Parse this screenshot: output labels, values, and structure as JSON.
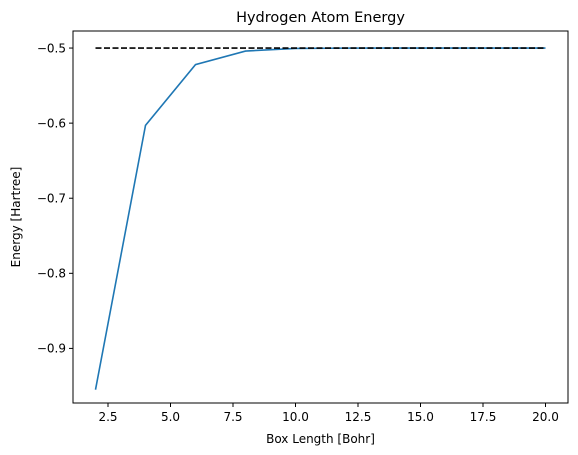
{
  "chart_data": {
    "type": "line",
    "title": "Hydrogen Atom Energy",
    "xlabel": "Box Length [Bohr]",
    "ylabel": "Energy [Hartree]",
    "xlim": [
      1.1,
      20.9
    ],
    "ylim": [
      -0.9727,
      -0.4773
    ],
    "xticks": [
      2.5,
      5.0,
      7.5,
      10.0,
      12.5,
      15.0,
      17.5,
      20.0
    ],
    "xtick_labels": [
      "2.5",
      "5.0",
      "7.5",
      "10.0",
      "12.5",
      "15.0",
      "17.5",
      "20.0"
    ],
    "yticks": [
      -0.9,
      -0.8,
      -0.7,
      -0.6,
      -0.5
    ],
    "ytick_labels": [
      "−0.9",
      "−0.8",
      "−0.7",
      "−0.6",
      "−0.5"
    ],
    "grid": false,
    "series": [
      {
        "style": "solid",
        "color": "#1f77b4",
        "x": [
          2,
          4,
          6,
          8,
          10,
          12,
          14,
          16,
          18,
          20
        ],
        "y": [
          -0.955,
          -0.603,
          -0.522,
          -0.504,
          -0.5005,
          -0.5001,
          -0.5,
          -0.5,
          -0.5,
          -0.5
        ]
      },
      {
        "style": "dashed",
        "color": "#000000",
        "x": [
          2,
          20
        ],
        "y": [
          -0.5,
          -0.5
        ]
      }
    ]
  }
}
